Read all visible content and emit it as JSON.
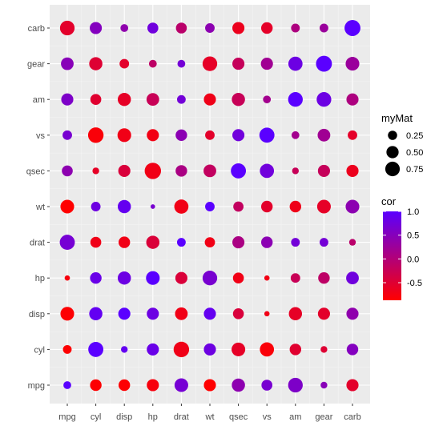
{
  "chart_data": {
    "type": "scatter",
    "subtype": "correlation-bubble-matrix",
    "title": "",
    "xlabel": "",
    "ylabel": "",
    "x_categories": [
      "mpg",
      "cyl",
      "disp",
      "hp",
      "drat",
      "wt",
      "qsec",
      "vs",
      "am",
      "gear",
      "carb"
    ],
    "y_categories": [
      "mpg",
      "cyl",
      "disp",
      "hp",
      "drat",
      "wt",
      "qsec",
      "vs",
      "am",
      "gear",
      "carb"
    ],
    "size_variable": "myMat",
    "color_variable": "cor",
    "size_legend": {
      "title": "myMat",
      "breaks": [
        0.25,
        0.5,
        0.75
      ],
      "labels": [
        "0.25",
        "0.50",
        "0.75"
      ]
    },
    "color_legend": {
      "title": "cor",
      "breaks": [
        1.0,
        0.5,
        0.0,
        -0.5
      ],
      "labels": [
        "1.0",
        "0.5",
        "0.0",
        "-0.5"
      ],
      "range": [
        -0.87,
        1.0
      ],
      "low_color": "#ff0000",
      "high_color": "#5a00ff"
    },
    "grid": true,
    "panel_background": "#ebebeb",
    "legend_position": "right",
    "cor": [
      [
        1.0,
        -0.852,
        -0.848,
        -0.776,
        0.681,
        -0.868,
        0.419,
        0.664,
        0.6,
        0.48,
        -0.551
      ],
      [
        -0.852,
        1.0,
        0.902,
        0.832,
        -0.7,
        0.782,
        -0.591,
        -0.811,
        -0.523,
        -0.493,
        0.527
      ],
      [
        -0.848,
        0.902,
        1.0,
        0.791,
        -0.71,
        0.888,
        -0.434,
        -0.71,
        -0.591,
        -0.556,
        0.395
      ],
      [
        -0.776,
        0.832,
        0.791,
        1.0,
        -0.449,
        0.659,
        -0.708,
        -0.723,
        -0.243,
        -0.126,
        0.75
      ],
      [
        0.681,
        -0.7,
        -0.71,
        -0.449,
        1.0,
        -0.712,
        0.091,
        0.44,
        0.713,
        0.7,
        -0.091
      ],
      [
        -0.868,
        0.782,
        0.888,
        0.659,
        -0.712,
        1.0,
        -0.175,
        -0.555,
        -0.692,
        -0.583,
        0.428
      ],
      [
        0.419,
        -0.591,
        -0.434,
        -0.708,
        0.091,
        -0.175,
        1.0,
        0.745,
        -0.23,
        -0.213,
        -0.656
      ],
      [
        0.664,
        -0.811,
        -0.71,
        -0.723,
        0.44,
        -0.555,
        0.745,
        1.0,
        0.168,
        0.206,
        -0.57
      ],
      [
        0.6,
        -0.523,
        -0.591,
        -0.243,
        0.713,
        -0.692,
        -0.23,
        0.168,
        1.0,
        0.794,
        0.058
      ],
      [
        0.48,
        -0.493,
        -0.556,
        -0.126,
        0.7,
        -0.583,
        -0.213,
        0.206,
        0.794,
        1.0,
        0.274
      ],
      [
        -0.551,
        0.527,
        0.395,
        0.75,
        -0.091,
        0.428,
        -0.656,
        -0.57,
        0.058,
        0.274,
        1.0
      ]
    ],
    "myMat": [
      [
        0.15,
        0.4,
        0.4,
        0.45,
        0.6,
        0.45,
        0.55,
        0.35,
        0.7,
        0.1,
        0.45
      ],
      [
        0.2,
        0.75,
        0.1,
        0.45,
        0.8,
        0.45,
        0.6,
        0.65,
        0.4,
        0.1,
        0.4
      ],
      [
        0.6,
        0.55,
        0.45,
        0.45,
        0.5,
        0.45,
        0.35,
        0.05,
        0.55,
        0.45,
        0.45
      ],
      [
        0.05,
        0.4,
        0.55,
        0.6,
        0.45,
        0.7,
        0.35,
        0.05,
        0.25,
        0.4,
        0.5
      ],
      [
        0.75,
        0.35,
        0.4,
        0.55,
        0.2,
        0.3,
        0.45,
        0.4,
        0.2,
        0.2,
        0.1
      ],
      [
        0.6,
        0.25,
        0.55,
        0.03,
        0.65,
        0.25,
        0.3,
        0.4,
        0.4,
        0.6,
        0.6
      ],
      [
        0.35,
        0.1,
        0.45,
        0.9,
        0.4,
        0.5,
        0.75,
        0.65,
        0.1,
        0.45,
        0.45
      ],
      [
        0.25,
        0.8,
        0.6,
        0.45,
        0.4,
        0.25,
        0.45,
        0.75,
        0.15,
        0.5,
        0.25
      ],
      [
        0.45,
        0.35,
        0.55,
        0.5,
        0.2,
        0.45,
        0.55,
        0.15,
        0.7,
        0.7,
        0.45
      ],
      [
        0.5,
        0.55,
        0.25,
        0.15,
        0.15,
        0.7,
        0.45,
        0.45,
        0.65,
        0.85,
        0.6
      ],
      [
        0.7,
        0.45,
        0.15,
        0.35,
        0.35,
        0.25,
        0.45,
        0.4,
        0.2,
        0.2,
        0.85
      ]
    ]
  }
}
